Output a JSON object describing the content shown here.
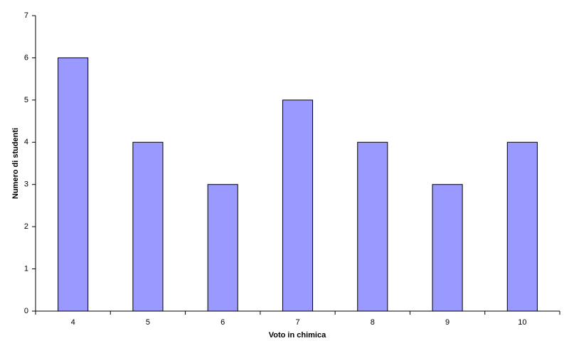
{
  "chart_data": {
    "type": "bar",
    "x_label": "Voto in chimica",
    "y_label": "Numero di studenti",
    "categories": [
      "4",
      "5",
      "6",
      "7",
      "8",
      "9",
      "10"
    ],
    "values": [
      6,
      4,
      3,
      5,
      4,
      3,
      4
    ],
    "color": "#9999ff",
    "ylim": [
      0,
      7
    ],
    "yticks": [
      0,
      1,
      2,
      3,
      4,
      5,
      6,
      7
    ],
    "grid": false
  }
}
